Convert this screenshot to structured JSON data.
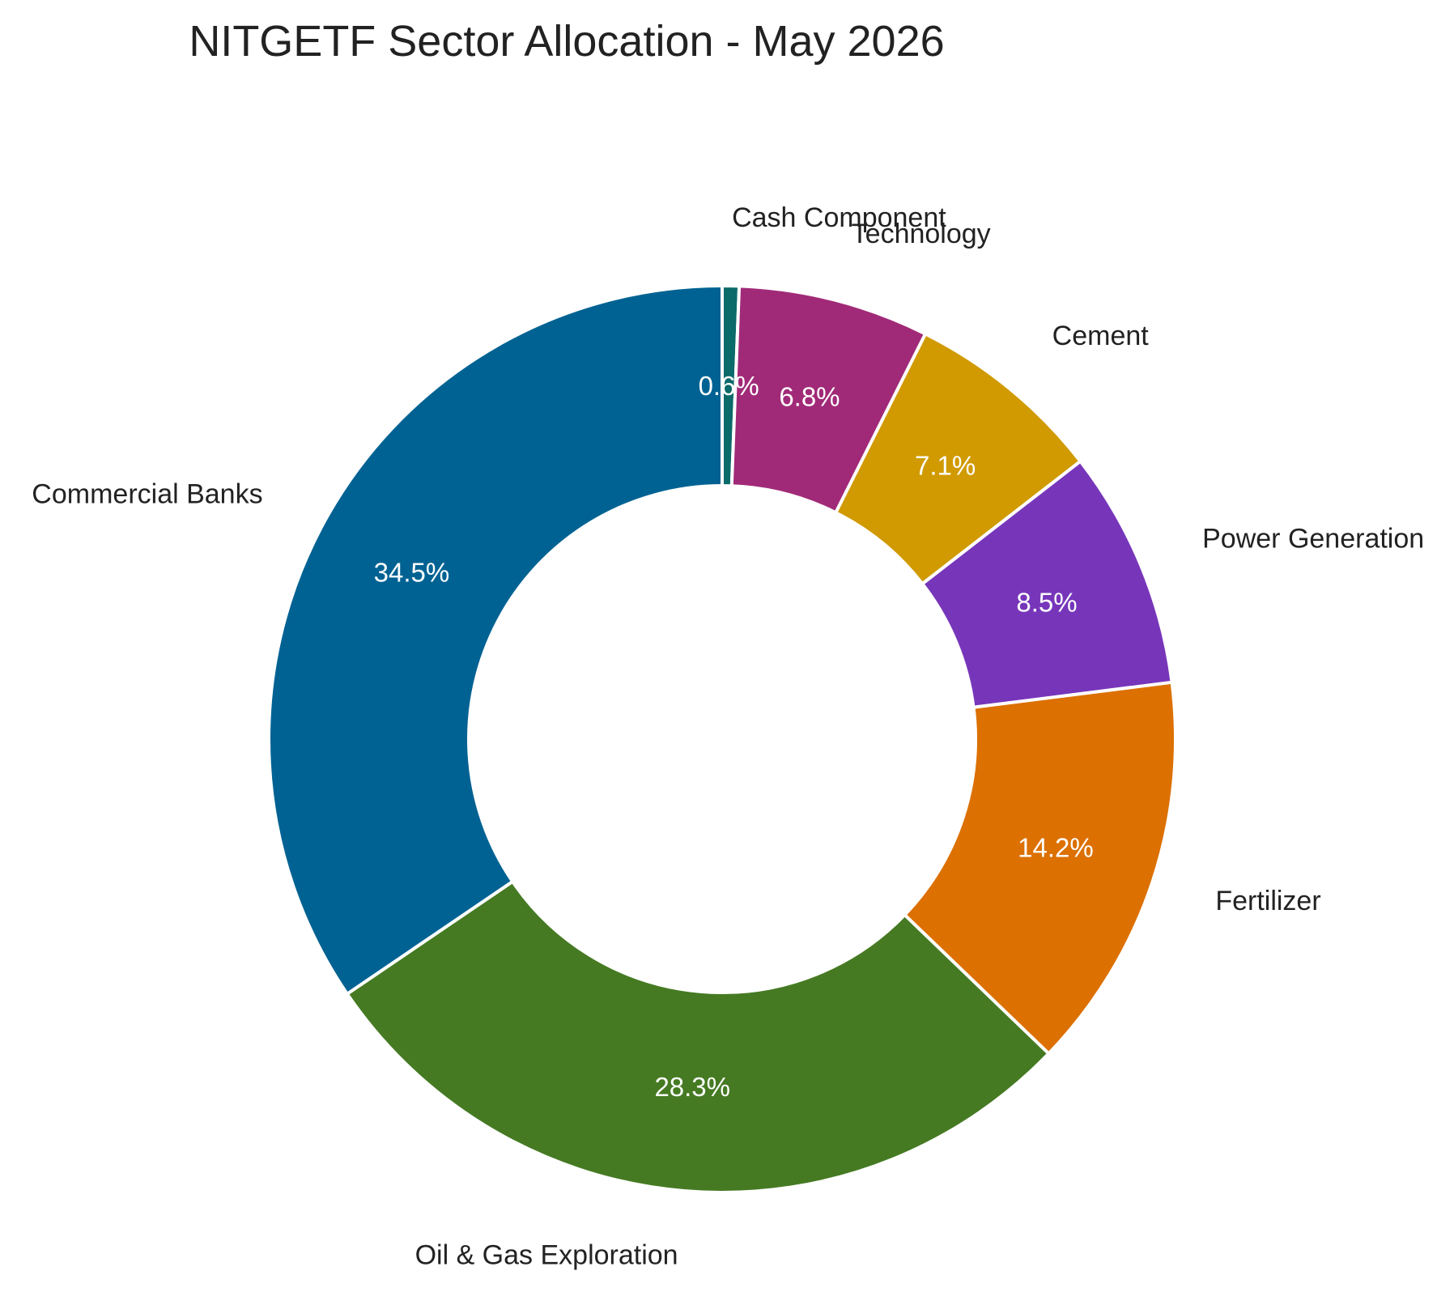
{
  "chart_data": {
    "type": "pie",
    "title": "NITGETF Sector Allocation - May 2026",
    "donut": true,
    "start_angle": "top, clockwise",
    "slices": [
      {
        "label": "Cash Component",
        "value": 0.6,
        "value_label": "0.6%",
        "color": "#0b6a6a"
      },
      {
        "label": "Technology",
        "value": 6.8,
        "value_label": "6.8%",
        "color": "#a12a78"
      },
      {
        "label": "Cement",
        "value": 7.1,
        "value_label": "7.1%",
        "color": "#d09a00"
      },
      {
        "label": "Power Generation",
        "value": 8.5,
        "value_label": "8.5%",
        "color": "#7736ba"
      },
      {
        "label": "Fertilizer",
        "value": 14.2,
        "value_label": "14.2%",
        "color": "#dc7000"
      },
      {
        "label": "Oil & Gas Exploration",
        "value": 28.3,
        "value_label": "28.3%",
        "color": "#457a22"
      },
      {
        "label": "Commercial Banks",
        "value": 34.5,
        "value_label": "34.5%",
        "color": "#006293"
      }
    ]
  }
}
